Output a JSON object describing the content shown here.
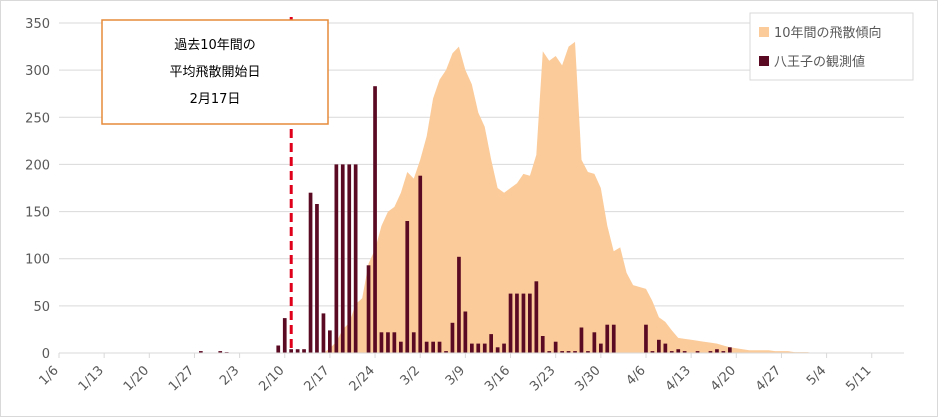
{
  "chart_data": {
    "type": "bar",
    "ylim": [
      0,
      350
    ],
    "yticks": [
      0,
      50,
      100,
      150,
      200,
      250,
      300,
      350
    ],
    "xticks": [
      "1/6",
      "1/13",
      "1/20",
      "1/27",
      "2/3",
      "2/10",
      "2/17",
      "2/24",
      "3/2",
      "3/9",
      "3/16",
      "3/23",
      "3/30",
      "4/6",
      "4/13",
      "4/20",
      "4/27",
      "5/4",
      "5/11"
    ],
    "grid": true,
    "legend_position": "top-right",
    "series": [
      {
        "name": "10年間の飛散傾向",
        "kind": "area",
        "color": "#FBCB9A",
        "x_day": [
          42,
          43,
          44,
          45,
          46,
          47,
          48,
          49,
          50,
          51,
          52,
          53,
          54,
          55,
          56,
          57,
          58,
          59,
          60,
          61,
          62,
          63,
          64,
          65,
          66,
          67,
          68,
          69,
          70,
          71,
          72,
          73,
          74,
          75,
          76,
          77,
          78,
          79,
          80,
          81,
          82,
          83,
          84,
          85,
          86,
          87,
          88,
          89,
          90,
          91,
          92,
          93,
          94,
          95,
          96,
          97,
          98,
          99,
          100,
          101,
          102,
          103,
          104,
          105,
          106,
          107,
          108,
          109,
          110,
          111,
          112,
          113,
          114,
          115,
          116,
          117,
          118,
          119,
          120,
          121,
          122,
          123,
          124,
          125,
          126,
          127,
          128,
          129,
          130,
          131,
          132,
          133,
          134,
          135,
          136,
          137,
          138,
          139,
          140,
          141,
          142,
          143,
          144,
          145,
          146
        ],
        "values": [
          0,
          0,
          0,
          0,
          0,
          0,
          5,
          12,
          25,
          32,
          52,
          58,
          95,
          110,
          135,
          150,
          155,
          170,
          192,
          185,
          205,
          230,
          270,
          290,
          300,
          318,
          325,
          300,
          285,
          255,
          240,
          205,
          175,
          170,
          175,
          180,
          190,
          188,
          210,
          320,
          310,
          315,
          305,
          325,
          330,
          205,
          192,
          190,
          175,
          135,
          108,
          112,
          85,
          72,
          70,
          68,
          55,
          38,
          33,
          24,
          16,
          15,
          14,
          13,
          12,
          11,
          10,
          8,
          6,
          5,
          4,
          3,
          3,
          3,
          3,
          2,
          2,
          2,
          1,
          1,
          1,
          0,
          0,
          0,
          0,
          0,
          0,
          0,
          0,
          0,
          0,
          0,
          0,
          0,
          0,
          0,
          0,
          0,
          0,
          0,
          0,
          0,
          0,
          0,
          0
        ]
      },
      {
        "name": "八王子の観測値",
        "kind": "bar",
        "color": "#5B0A23",
        "x_day": [
          28,
          31,
          32,
          40,
          41,
          42,
          43,
          44,
          45,
          46,
          47,
          48,
          49,
          50,
          51,
          52,
          53,
          54,
          55,
          56,
          57,
          58,
          59,
          60,
          61,
          62,
          63,
          64,
          65,
          66,
          67,
          68,
          69,
          70,
          71,
          72,
          73,
          74,
          75,
          76,
          77,
          78,
          79,
          80,
          81,
          82,
          83,
          84,
          85,
          86,
          87,
          88,
          89,
          90,
          91,
          92,
          97,
          98,
          99,
          100,
          101,
          102,
          103,
          104,
          105,
          106,
          107,
          108,
          109,
          110
        ],
        "values": [
          2,
          2,
          1,
          8,
          37,
          4,
          4,
          4,
          170,
          158,
          42,
          24,
          200,
          200,
          200,
          200,
          0,
          93,
          283,
          22,
          22,
          22,
          12,
          140,
          22,
          188,
          12,
          12,
          12,
          2,
          32,
          102,
          44,
          10,
          10,
          10,
          20,
          6,
          10,
          63,
          63,
          63,
          63,
          76,
          18,
          2,
          12,
          2,
          2,
          2,
          27,
          2,
          22,
          10,
          30,
          30,
          30,
          2,
          14,
          10,
          2,
          4,
          2,
          0,
          2,
          0,
          2,
          4,
          2,
          6
        ]
      }
    ],
    "annotations": [
      {
        "text_lines": [
          "過去10年間の",
          "平均飛散開始日",
          "2月17日"
        ],
        "x_day": 42,
        "style": "dashed-red-vertical-line"
      }
    ]
  }
}
